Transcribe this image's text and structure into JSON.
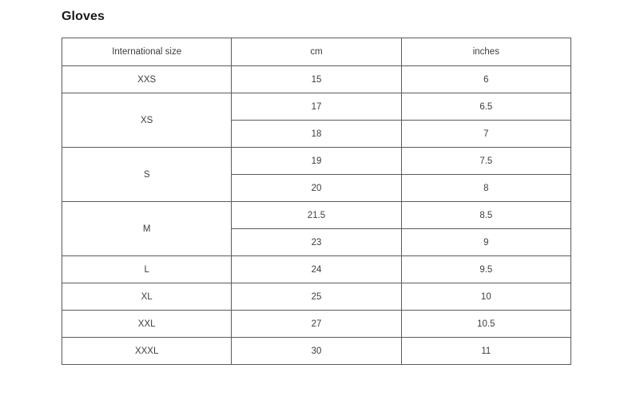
{
  "page": {
    "title": "Gloves"
  },
  "size_table": {
    "headers": [
      "International size",
      "cm",
      "inches"
    ],
    "rows": [
      {
        "size": "XXS",
        "measurements": [
          {
            "cm": "15",
            "inches": "6"
          }
        ]
      },
      {
        "size": "XS",
        "measurements": [
          {
            "cm": "17",
            "inches": "6.5"
          },
          {
            "cm": "18",
            "inches": "7"
          }
        ]
      },
      {
        "size": "S",
        "measurements": [
          {
            "cm": "19",
            "inches": "7.5"
          },
          {
            "cm": "20",
            "inches": "8"
          }
        ]
      },
      {
        "size": "M",
        "measurements": [
          {
            "cm": "21.5",
            "inches": "8.5"
          },
          {
            "cm": "23",
            "inches": "9"
          }
        ]
      },
      {
        "size": "L",
        "measurements": [
          {
            "cm": "24",
            "inches": "9.5"
          }
        ]
      },
      {
        "size": "XL",
        "measurements": [
          {
            "cm": "25",
            "inches": "10"
          }
        ]
      },
      {
        "size": "XXL",
        "measurements": [
          {
            "cm": "27",
            "inches": "10.5"
          }
        ]
      },
      {
        "size": "XXXL",
        "measurements": [
          {
            "cm": "30",
            "inches": "11"
          }
        ]
      }
    ],
    "colors": {
      "border": "#5b5b5b",
      "text": "#3d3d3d",
      "title": "#1a1a1a",
      "background": "#ffffff"
    }
  }
}
